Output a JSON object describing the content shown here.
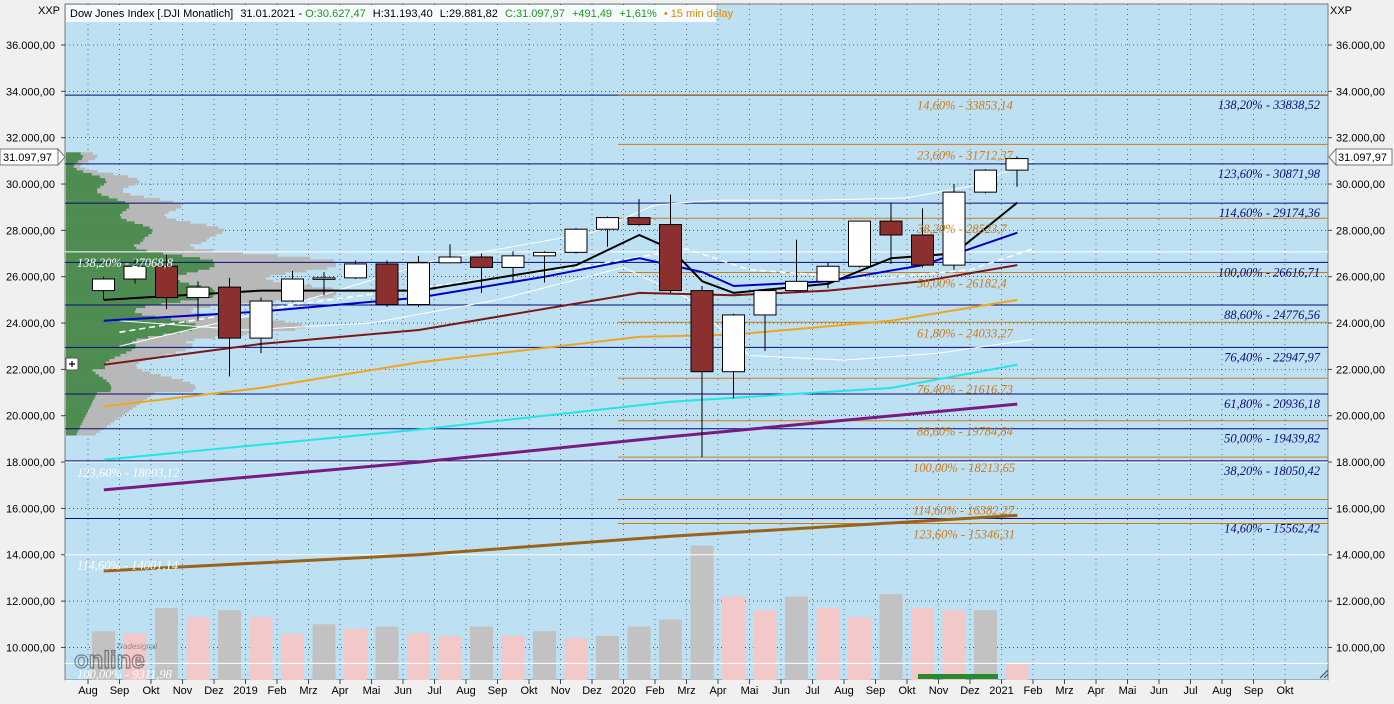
{
  "header": {
    "symbol": "Dow Jones Index [.DJI Monatlich]",
    "date": "31.01.2021",
    "open": "O:30.627,47",
    "high": "H:31.193,40",
    "low": "L:29.881,82",
    "close": "C:31.097,97",
    "change": "+491,49",
    "change_pct": "+1,61%",
    "delay": "15 min delay"
  },
  "axis_label": "XXP",
  "last_price_label": "31.097,97",
  "logo": {
    "text": "online",
    "brand": "Tradesignal"
  },
  "colors": {
    "background": "#bde0f3",
    "bull_body": "#ffffff",
    "bear_body": "#8b2f2f",
    "volume_up": "#c2c2c2",
    "volume_down": "#f2c8c8",
    "fib_blue": "#0a0a7a",
    "fib_orange": "#d07a14",
    "fib_white": "#ffffff",
    "vp_green": "#4f8c52",
    "vp_gray": "#b8b8b8"
  },
  "chart_data": {
    "type": "candlestick",
    "title": "Dow Jones Index [.DJI Monatlich]",
    "y_range": [
      8500,
      37000
    ],
    "y_ticks": [
      {
        "v": 10000,
        "label": "10.000,00"
      },
      {
        "v": 12000,
        "label": "12.000,00"
      },
      {
        "v": 14000,
        "label": "14.000,00"
      },
      {
        "v": 16000,
        "label": "16.000,00"
      },
      {
        "v": 18000,
        "label": "18.000,00"
      },
      {
        "v": 20000,
        "label": "20.000,00"
      },
      {
        "v": 22000,
        "label": "22.000,00"
      },
      {
        "v": 24000,
        "label": "24.000,00"
      },
      {
        "v": 26000,
        "label": "26.000,00"
      },
      {
        "v": 28000,
        "label": "28.000,00"
      },
      {
        "v": 30000,
        "label": "30.000,00"
      },
      {
        "v": 32000,
        "label": "32.000,00"
      },
      {
        "v": 34000,
        "label": "34.000,00"
      },
      {
        "v": 36000,
        "label": "36.000,00"
      }
    ],
    "x_labels": [
      "Aug",
      "Sep",
      "Okt",
      "Nov",
      "Dez",
      "2019",
      "Feb",
      "Mrz",
      "Apr",
      "Mai",
      "Jun",
      "Jul",
      "Aug",
      "Sep",
      "Okt",
      "Nov",
      "Dez",
      "2020",
      "Feb",
      "Mrz",
      "Apr",
      "Mai",
      "Jun",
      "Jul",
      "Aug",
      "Sep",
      "Okt",
      "Nov",
      "Dez",
      "2021",
      "Feb",
      "Mrz",
      "Apr",
      "Mai",
      "Jun",
      "Jul",
      "Aug",
      "Sep",
      "Okt"
    ],
    "candles": [
      {
        "o": 25400,
        "h": 26000,
        "l": 25000,
        "c": 25900
      },
      {
        "o": 25900,
        "h": 26800,
        "l": 25700,
        "c": 26450
      },
      {
        "o": 26450,
        "h": 26950,
        "l": 24600,
        "c": 25100
      },
      {
        "o": 25100,
        "h": 25800,
        "l": 24100,
        "c": 25550
      },
      {
        "o": 25550,
        "h": 25950,
        "l": 21700,
        "c": 23350
      },
      {
        "o": 23350,
        "h": 25100,
        "l": 22700,
        "c": 24950
      },
      {
        "o": 24950,
        "h": 26250,
        "l": 24900,
        "c": 25900
      },
      {
        "o": 25900,
        "h": 26200,
        "l": 25200,
        "c": 25950
      },
      {
        "o": 25950,
        "h": 26700,
        "l": 25900,
        "c": 26550
      },
      {
        "o": 26550,
        "h": 26700,
        "l": 24700,
        "c": 24800
      },
      {
        "o": 24800,
        "h": 26900,
        "l": 24700,
        "c": 26600
      },
      {
        "o": 26600,
        "h": 27400,
        "l": 26600,
        "c": 26850
      },
      {
        "o": 26850,
        "h": 27000,
        "l": 25300,
        "c": 26400
      },
      {
        "o": 26400,
        "h": 27100,
        "l": 25800,
        "c": 26900
      },
      {
        "o": 26900,
        "h": 27100,
        "l": 25750,
        "c": 27050
      },
      {
        "o": 27050,
        "h": 28100,
        "l": 27000,
        "c": 28050
      },
      {
        "o": 28050,
        "h": 28600,
        "l": 27300,
        "c": 28550
      },
      {
        "o": 28550,
        "h": 29350,
        "l": 28200,
        "c": 28250
      },
      {
        "o": 28250,
        "h": 29550,
        "l": 25300,
        "c": 25400
      },
      {
        "o": 25400,
        "h": 25600,
        "l": 18200,
        "c": 21900
      },
      {
        "o": 21900,
        "h": 24400,
        "l": 20750,
        "c": 24350
      },
      {
        "o": 24350,
        "h": 25400,
        "l": 22800,
        "c": 25400
      },
      {
        "o": 25400,
        "h": 27600,
        "l": 25350,
        "c": 25800
      },
      {
        "o": 25800,
        "h": 26600,
        "l": 25500,
        "c": 26450
      },
      {
        "o": 26450,
        "h": 28400,
        "l": 26400,
        "c": 28400
      },
      {
        "o": 28400,
        "h": 29200,
        "l": 26550,
        "c": 27800
      },
      {
        "o": 27800,
        "h": 28950,
        "l": 26400,
        "c": 26500
      },
      {
        "o": 26500,
        "h": 30000,
        "l": 26300,
        "c": 29650
      },
      {
        "o": 29650,
        "h": 30650,
        "l": 29600,
        "c": 30600
      },
      {
        "o": 30600,
        "h": 31193,
        "l": 29880,
        "c": 31098
      }
    ],
    "volume_bars": [
      {
        "v": 10700,
        "up": true
      },
      {
        "v": 10600,
        "up": false
      },
      {
        "v": 11700,
        "up": true
      },
      {
        "v": 11300,
        "up": false
      },
      {
        "v": 11600,
        "up": true
      },
      {
        "v": 11300,
        "up": false
      },
      {
        "v": 10600,
        "up": false
      },
      {
        "v": 11000,
        "up": true
      },
      {
        "v": 10800,
        "up": false
      },
      {
        "v": 10900,
        "up": true
      },
      {
        "v": 10600,
        "up": false
      },
      {
        "v": 10500,
        "up": false
      },
      {
        "v": 10900,
        "up": true
      },
      {
        "v": 10500,
        "up": false
      },
      {
        "v": 10700,
        "up": true
      },
      {
        "v": 10400,
        "up": false
      },
      {
        "v": 10500,
        "up": true
      },
      {
        "v": 10900,
        "up": true
      },
      {
        "v": 11200,
        "up": true
      },
      {
        "v": 14400,
        "up": true
      },
      {
        "v": 12200,
        "up": false
      },
      {
        "v": 11600,
        "up": false
      },
      {
        "v": 12200,
        "up": true
      },
      {
        "v": 11700,
        "up": false
      },
      {
        "v": 11300,
        "up": false
      },
      {
        "v": 12300,
        "up": true
      },
      {
        "v": 11700,
        "up": false
      },
      {
        "v": 11600,
        "up": false
      },
      {
        "v": 11600,
        "up": true
      },
      {
        "v": 9300,
        "up": false
      }
    ],
    "moving_averages": [
      {
        "color": "#000000",
        "values": [
          {
            "i": 0,
            "v": 25000
          },
          {
            "i": 5,
            "v": 25400
          },
          {
            "i": 10,
            "v": 25400
          },
          {
            "i": 15,
            "v": 26500
          },
          {
            "i": 17,
            "v": 27800
          },
          {
            "i": 18,
            "v": 27200
          },
          {
            "i": 19,
            "v": 25800
          },
          {
            "i": 20,
            "v": 25300
          },
          {
            "i": 23,
            "v": 25700
          },
          {
            "i": 25,
            "v": 26800
          },
          {
            "i": 27,
            "v": 27000
          },
          {
            "i": 29,
            "v": 29200
          }
        ]
      },
      {
        "color": "#0000c8",
        "values": [
          {
            "i": 0,
            "v": 24100
          },
          {
            "i": 5,
            "v": 24500
          },
          {
            "i": 10,
            "v": 25100
          },
          {
            "i": 14,
            "v": 26000
          },
          {
            "i": 17,
            "v": 26800
          },
          {
            "i": 19,
            "v": 26200
          },
          {
            "i": 20,
            "v": 25600
          },
          {
            "i": 23,
            "v": 25800
          },
          {
            "i": 26,
            "v": 26500
          },
          {
            "i": 29,
            "v": 27900
          }
        ]
      },
      {
        "color": "#7a1818",
        "values": [
          {
            "i": 0,
            "v": 22200
          },
          {
            "i": 5,
            "v": 23100
          },
          {
            "i": 10,
            "v": 23700
          },
          {
            "i": 17,
            "v": 25300
          },
          {
            "i": 20,
            "v": 25200
          },
          {
            "i": 23,
            "v": 25400
          },
          {
            "i": 26,
            "v": 25800
          },
          {
            "i": 29,
            "v": 26500
          }
        ]
      },
      {
        "color": "#f0a520",
        "values": [
          {
            "i": 0,
            "v": 20400
          },
          {
            "i": 5,
            "v": 21200
          },
          {
            "i": 10,
            "v": 22300
          },
          {
            "i": 17,
            "v": 23400
          },
          {
            "i": 20,
            "v": 23500
          },
          {
            "i": 25,
            "v": 24100
          },
          {
            "i": 29,
            "v": 25000
          }
        ]
      },
      {
        "color": "#22e6e6",
        "values": [
          {
            "i": 0,
            "v": 18100
          },
          {
            "i": 10,
            "v": 19400
          },
          {
            "i": 18,
            "v": 20600
          },
          {
            "i": 25,
            "v": 21200
          },
          {
            "i": 29,
            "v": 22200
          }
        ]
      },
      {
        "color": "#7a1a80",
        "values": [
          {
            "i": 0,
            "v": 16800
          },
          {
            "i": 10,
            "v": 18000
          },
          {
            "i": 18,
            "v": 19100
          },
          {
            "i": 29,
            "v": 20500
          }
        ]
      },
      {
        "color": "#9a6418",
        "values": [
          {
            "i": 0,
            "v": 13300
          },
          {
            "i": 10,
            "v": 14000
          },
          {
            "i": 18,
            "v": 14800
          },
          {
            "i": 29,
            "v": 15700
          }
        ]
      }
    ],
    "fib_blue": [
      {
        "v": 33838.52,
        "label": "138,20% - 33838,52"
      },
      {
        "v": 30871.98,
        "label": "123,60% - 30871,98"
      },
      {
        "v": 29174.36,
        "label": "114,60% - 29174,36"
      },
      {
        "v": 26616.71,
        "label": "100,00% - 26616,71"
      },
      {
        "v": 24776.56,
        "label": "88,60% - 24776,56"
      },
      {
        "v": 22947.97,
        "label": "76,40% - 22947,97"
      },
      {
        "v": 20936.18,
        "label": "61,80% - 20936,18"
      },
      {
        "v": 19439.82,
        "label": "50,00% - 19439,82"
      },
      {
        "v": 18050.42,
        "label": "38,20% - 18050,42"
      },
      {
        "v": 15562.42,
        "label": "14,60% - 15562,42"
      }
    ],
    "fib_orange": [
      {
        "v": 33853.14,
        "label": "14,60% - 33853,14"
      },
      {
        "v": 31712.37,
        "label": "23,60% - 31712,37"
      },
      {
        "v": 28523.7,
        "label": "38,20% - 28523,7"
      },
      {
        "v": 26182.4,
        "label": "50,00% - 26182,4"
      },
      {
        "v": 24033.27,
        "label": "61,80% - 24033,27"
      },
      {
        "v": 21616.73,
        "label": "76,40% - 21616,73"
      },
      {
        "v": 19784.84,
        "label": "88,60% - 19784,84"
      },
      {
        "v": 18213.65,
        "label": "100,00% - 18213,65"
      },
      {
        "v": 16382.27,
        "label": "114,60% - 16382,27"
      },
      {
        "v": 15346.31,
        "label": "123,60% - 15346,31"
      }
    ],
    "fib_white": [
      {
        "v": 27068.8,
        "label": "138,20% - 27068,8"
      },
      {
        "v": 18003.12,
        "label": "123,60% - 18003,12"
      },
      {
        "v": 14001.14,
        "label": "114,60% - 14001,14"
      },
      {
        "v": 9311.98,
        "label": "100,00% - 9311,98"
      }
    ]
  }
}
